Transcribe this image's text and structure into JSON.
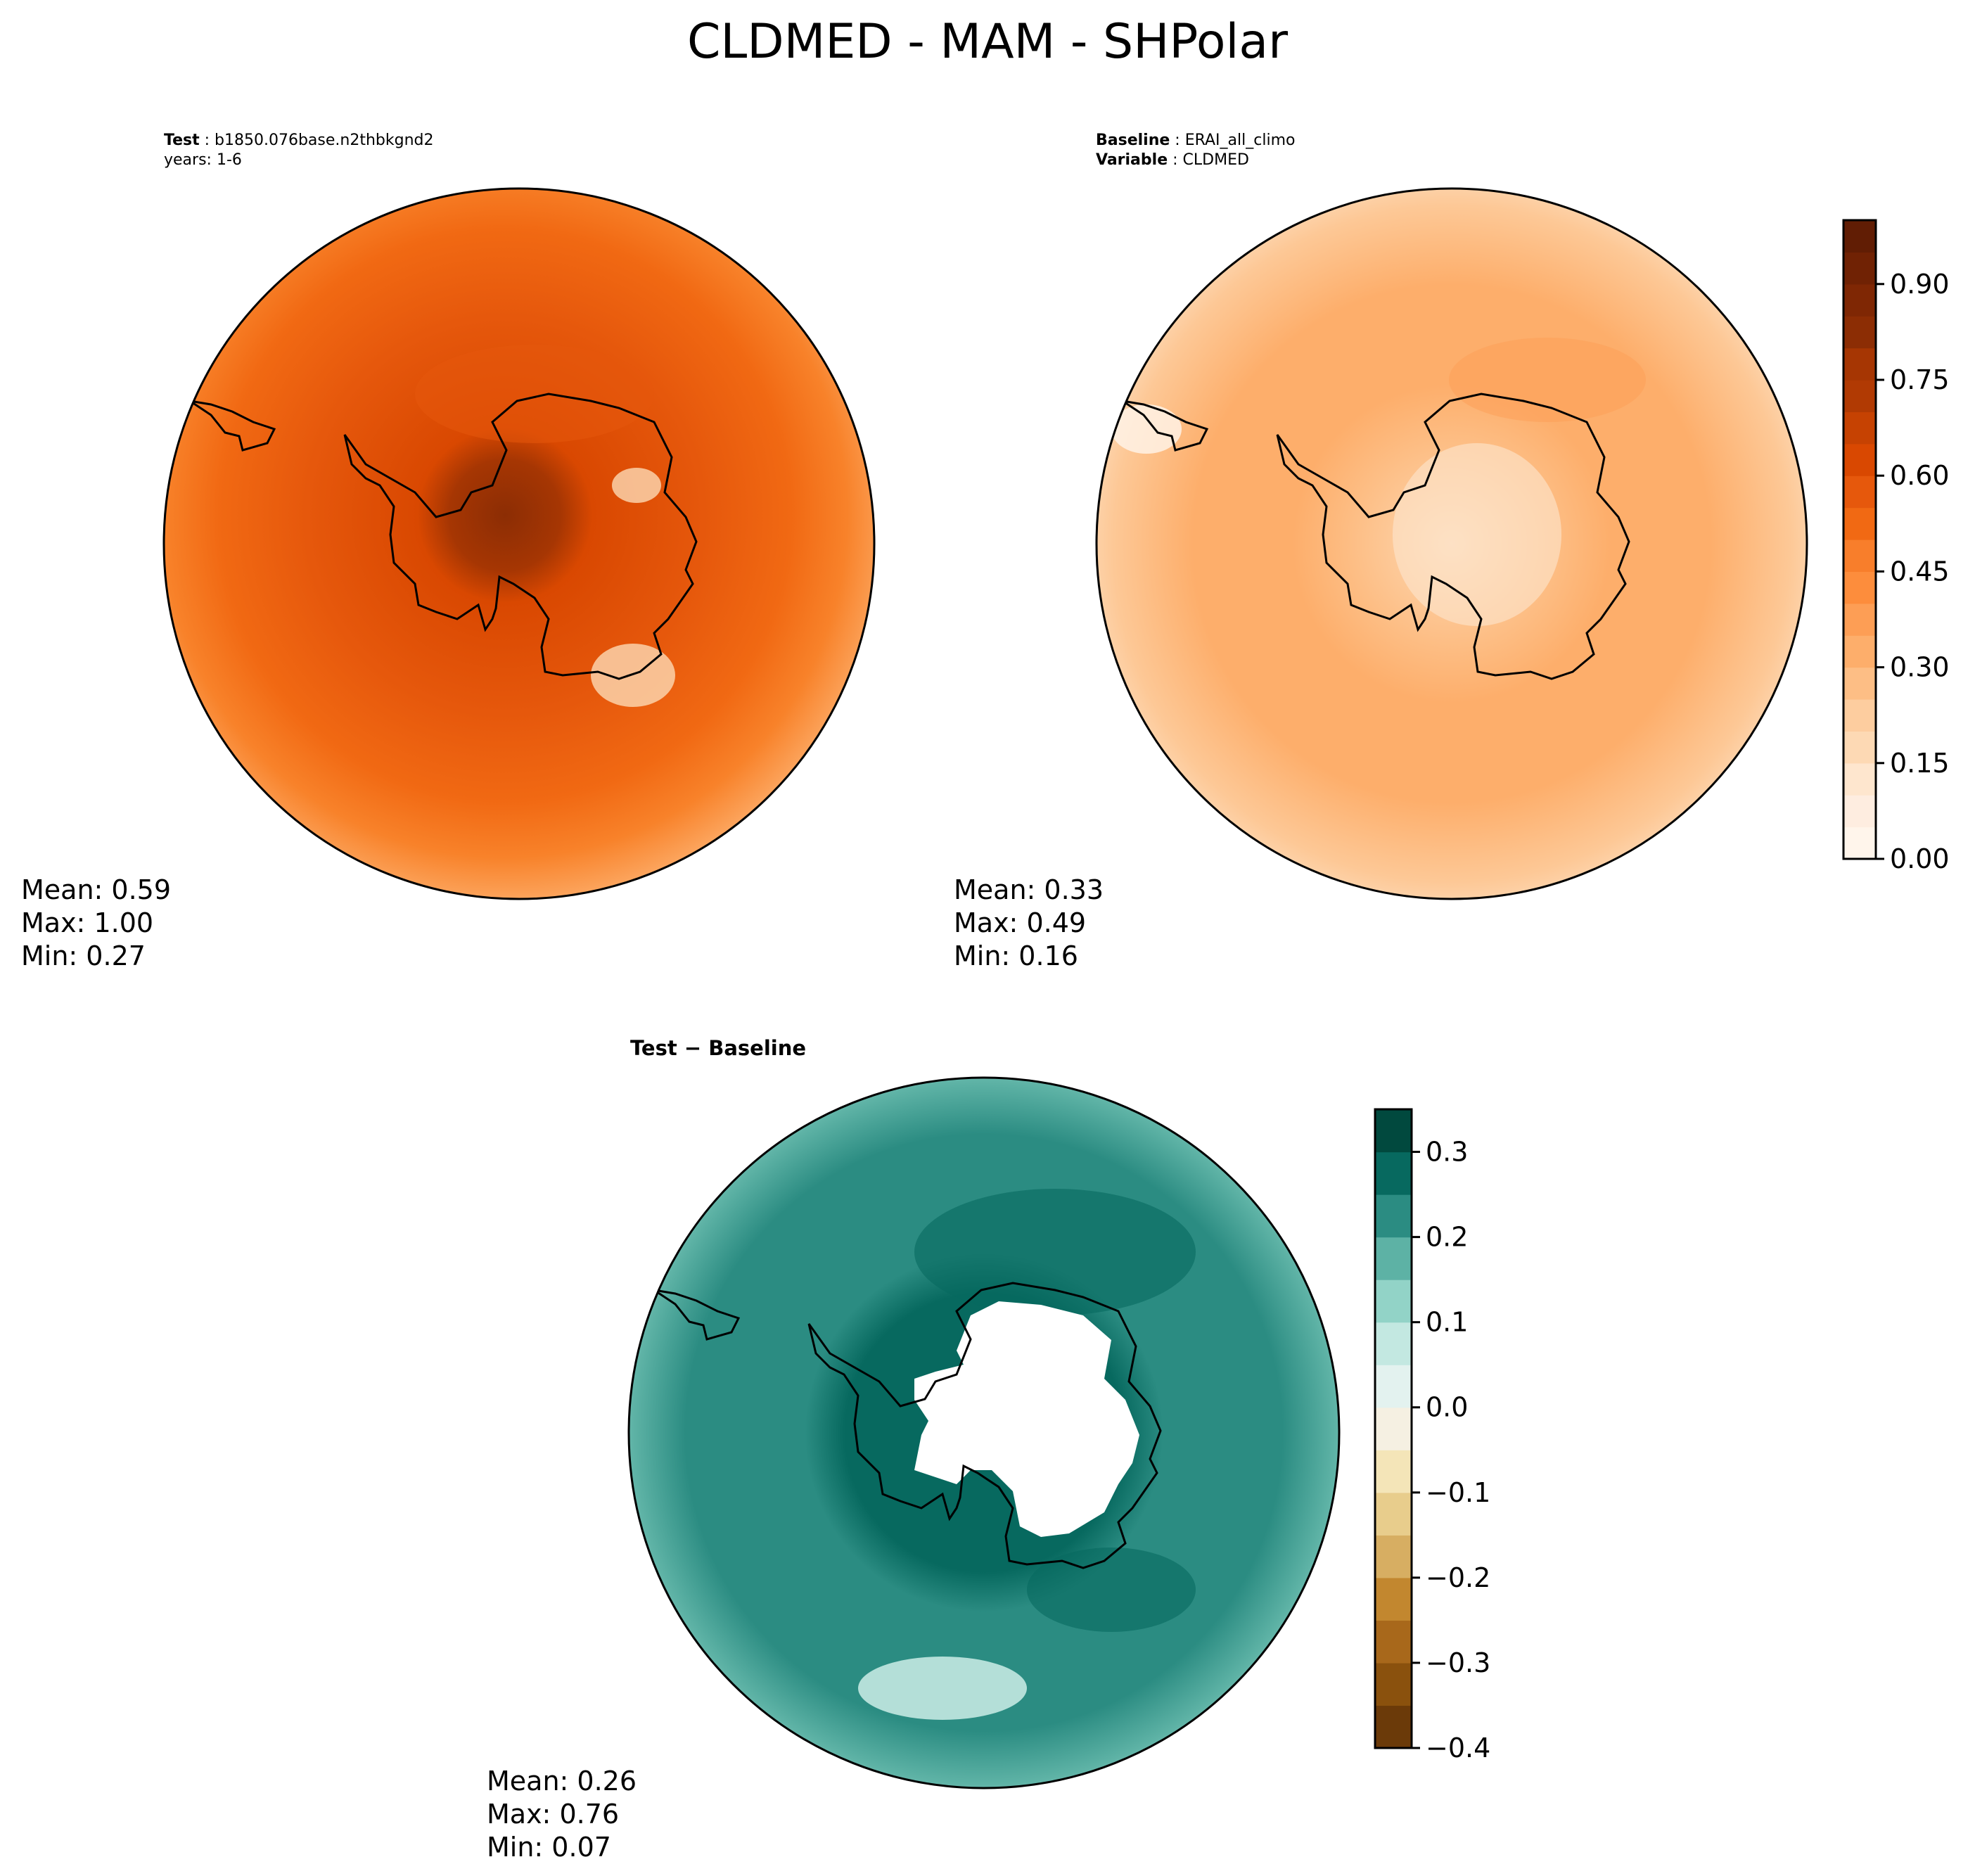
{
  "figure": {
    "title": "CLDMED - MAM - SHPolar"
  },
  "panels": {
    "test": {
      "label_bold": "Test",
      "label_value": "b1850.076base.n2thbkgnd2",
      "label_line2": "years: 1-6",
      "stats": {
        "mean": "Mean:  0.59",
        "max": "Max:  1.00",
        "min": "Min:  0.27"
      }
    },
    "baseline": {
      "line1_bold": "Baseline",
      "line1_value": "ERAI_all_climo",
      "line2_bold": "Variable",
      "line2_value": "CLDMED",
      "stats": {
        "mean": "Mean:  0.33",
        "max": "Max:  0.49",
        "min": "Min:  0.16"
      }
    },
    "diff": {
      "title": "Test − Baseline",
      "stats": {
        "mean": "Mean:  0.26",
        "max": "Max:  0.76",
        "min": "Min:  0.07"
      }
    }
  },
  "chart_data": [
    {
      "type": "heatmap",
      "panel": "test",
      "projection": "south-polar-stereographic",
      "mean": 0.59,
      "max": 1.0,
      "min": 0.27,
      "colormap": "Oranges",
      "colorbar": "shared with baseline"
    },
    {
      "type": "heatmap",
      "panel": "baseline",
      "projection": "south-polar-stereographic",
      "mean": 0.33,
      "max": 0.49,
      "min": 0.16,
      "colormap": "Oranges",
      "colorbar": {
        "range": [
          0.0,
          1.0
        ],
        "levels": 20,
        "ticks": [
          "0.00",
          "0.15",
          "0.30",
          "0.45",
          "0.60",
          "0.75",
          "0.90"
        ],
        "tick_values": [
          0.0,
          0.15,
          0.3,
          0.45,
          0.6,
          0.75,
          0.9
        ],
        "colors": [
          "#fff5eb",
          "#feede0",
          "#fee6ce",
          "#fdd9b4",
          "#fdcd9f",
          "#fdbe85",
          "#fdae6b",
          "#fd9e55",
          "#fd8d3c",
          "#f87e2b",
          "#f16913",
          "#e6580c",
          "#d94801",
          "#c64202",
          "#b13a03",
          "#a63603",
          "#8c2d04",
          "#7f2704",
          "#702204",
          "#611d04"
        ]
      }
    },
    {
      "type": "heatmap",
      "panel": "diff",
      "projection": "south-polar-stereographic",
      "mean": 0.26,
      "max": 0.76,
      "min": 0.07,
      "colormap": "BrBG",
      "colorbar": {
        "range": [
          -0.4,
          0.35
        ],
        "levels": 15,
        "ticks": [
          "−0.4",
          "−0.3",
          "−0.2",
          "−0.1",
          "0.0",
          "0.1",
          "0.2",
          "0.3"
        ],
        "tick_values": [
          -0.4,
          -0.3,
          -0.2,
          -0.1,
          0.0,
          0.1,
          0.2,
          0.3
        ],
        "colors": [
          "#6b3a09",
          "#8a510d",
          "#a8681b",
          "#c2872f",
          "#d7ae62",
          "#e8cd8c",
          "#f4e5b8",
          "#f5f0e2",
          "#e3f2ef",
          "#c3e8e1",
          "#92d3c7",
          "#5db2a5",
          "#2b8c82",
          "#07695f",
          "#01493e"
        ]
      }
    }
  ]
}
